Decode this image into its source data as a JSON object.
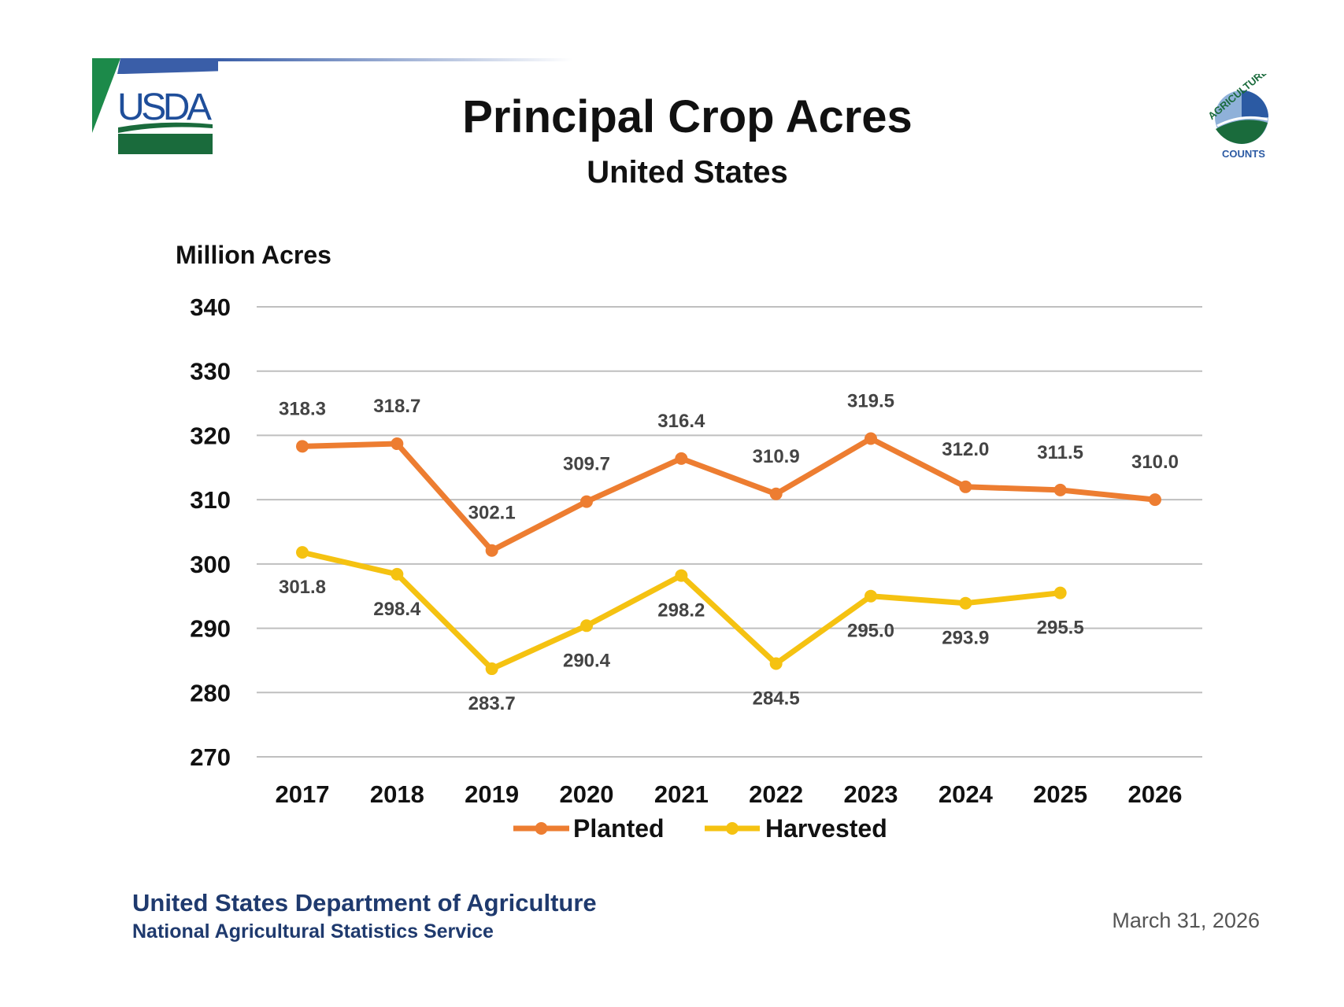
{
  "header": {
    "title": "Principal Crop Acres",
    "subtitle": "United States",
    "logo_left": "USDA",
    "logo_right": "AGRICULTURE COUNTS"
  },
  "footer": {
    "org": "United States Department of Agriculture",
    "agency": "National Agricultural Statistics Service",
    "date": "March 31, 2026"
  },
  "chart_data": {
    "type": "line",
    "title": "Principal Crop Acres",
    "subtitle": "United States",
    "ylabel": "Million Acres",
    "xlabel": "",
    "ylim": [
      270,
      340
    ],
    "yticks": [
      270,
      280,
      290,
      300,
      310,
      320,
      330,
      340
    ],
    "grid": true,
    "legend_placement": "bottom",
    "categories": [
      "2017",
      "2018",
      "2019",
      "2020",
      "2021",
      "2022",
      "2023",
      "2024",
      "2025",
      "2026"
    ],
    "series": [
      {
        "name": "Planted",
        "color": "#ED7D31",
        "values": [
          318.3,
          318.7,
          302.1,
          309.7,
          316.4,
          310.9,
          319.5,
          312.0,
          311.5,
          310.0
        ],
        "labels": [
          "318.3",
          "318.7",
          "302.1",
          "309.7",
          "316.4",
          "310.9",
          "319.5",
          "312.0",
          "311.5",
          "310.0"
        ]
      },
      {
        "name": "Harvested",
        "color": "#F5C211",
        "values": [
          301.8,
          298.4,
          283.7,
          290.4,
          298.2,
          284.5,
          295.0,
          293.9,
          295.5,
          null
        ],
        "labels": [
          "301.8",
          "298.4",
          "283.7",
          "290.4",
          "298.2",
          "284.5",
          "295.0",
          "293.9",
          "295.5",
          ""
        ]
      }
    ]
  }
}
